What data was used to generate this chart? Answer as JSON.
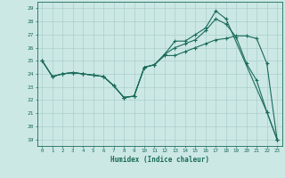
{
  "xlabel": "Humidex (Indice chaleur)",
  "bg_color": "#cce8e5",
  "grid_color": "#aacfcc",
  "line_color": "#1a6b5a",
  "xlim": [
    -0.5,
    23.5
  ],
  "ylim": [
    18.5,
    29.5
  ],
  "yticks": [
    19,
    20,
    21,
    22,
    23,
    24,
    25,
    26,
    27,
    28,
    29
  ],
  "xticks": [
    0,
    1,
    2,
    3,
    4,
    5,
    6,
    7,
    8,
    9,
    10,
    11,
    12,
    13,
    14,
    15,
    16,
    17,
    18,
    19,
    20,
    21,
    22,
    23
  ],
  "line1_x": [
    0,
    1,
    2,
    3,
    4,
    5,
    6,
    7,
    8,
    9,
    10,
    11,
    12,
    13,
    14,
    15,
    16,
    17,
    18,
    22,
    23
  ],
  "line1_y": [
    25.0,
    23.8,
    24.0,
    24.1,
    24.0,
    23.9,
    23.8,
    23.1,
    22.2,
    22.3,
    24.5,
    24.7,
    25.5,
    26.5,
    26.5,
    27.0,
    27.5,
    28.8,
    28.2,
    21.1,
    19.0
  ],
  "line2_x": [
    0,
    1,
    2,
    3,
    4,
    5,
    6,
    7,
    8,
    9,
    10,
    11,
    12,
    13,
    14,
    15,
    16,
    17,
    18,
    19,
    20,
    21,
    22,
    23
  ],
  "line2_y": [
    25.0,
    23.8,
    24.0,
    24.1,
    24.0,
    23.9,
    23.8,
    23.1,
    22.2,
    22.3,
    24.5,
    24.7,
    25.5,
    26.0,
    26.3,
    26.6,
    27.3,
    28.2,
    27.8,
    26.8,
    24.8,
    23.5,
    21.1,
    19.0
  ],
  "line3_x": [
    0,
    1,
    2,
    3,
    4,
    5,
    6,
    7,
    8,
    9,
    10,
    11,
    12,
    13,
    14,
    15,
    16,
    17,
    18,
    19,
    20,
    21,
    22,
    23
  ],
  "line3_y": [
    25.0,
    23.8,
    24.0,
    24.1,
    24.0,
    23.9,
    23.8,
    23.1,
    22.2,
    22.3,
    24.5,
    24.7,
    25.4,
    25.4,
    25.7,
    26.0,
    26.3,
    26.6,
    26.7,
    26.9,
    26.9,
    26.7,
    24.8,
    19.0
  ]
}
